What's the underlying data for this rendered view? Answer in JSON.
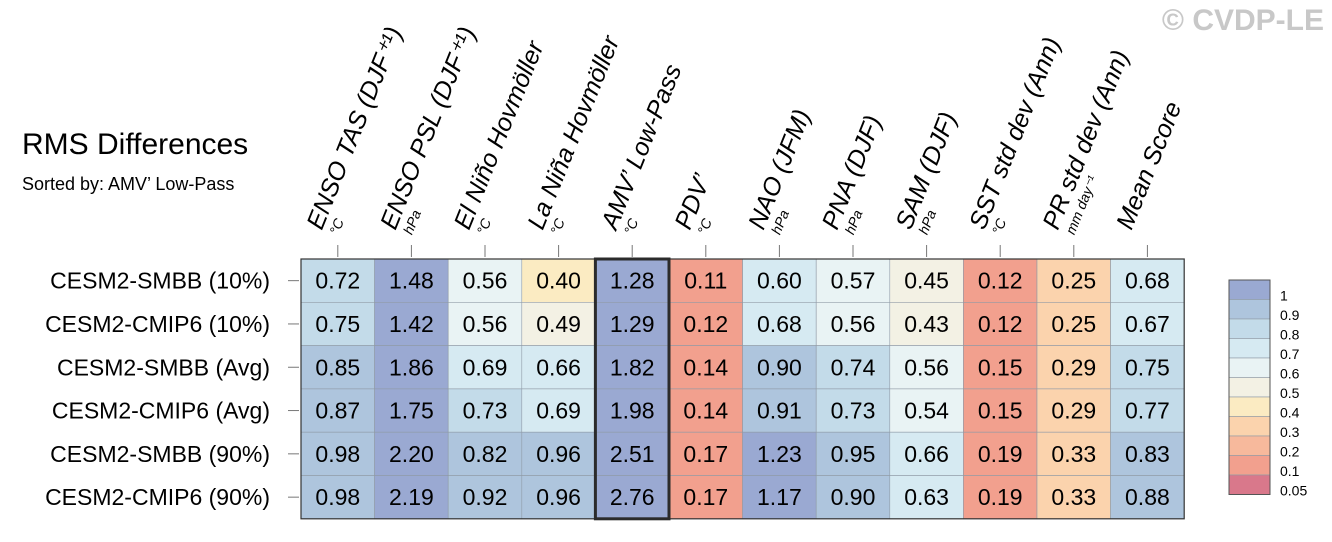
{
  "watermark": "© CVDP-LE",
  "chart_data": {
    "type": "heatmap",
    "title": "RMS Differences",
    "subtitle": "Sorted by: AMV’ Low-Pass",
    "sorted_column": "AMV’ Low-Pass",
    "columns": [
      {
        "name": "ENSO TAS (DJF⁺¹)",
        "unit": "°C"
      },
      {
        "name": "ENSO PSL (DJF⁺¹)",
        "unit": "hPa"
      },
      {
        "name": "El Niño Hovmöller",
        "unit": "°C"
      },
      {
        "name": "La Niña Hovmöller",
        "unit": "°C"
      },
      {
        "name": "AMV’ Low-Pass",
        "unit": "°C"
      },
      {
        "name": "PDV’",
        "unit": "°C"
      },
      {
        "name": "NAO (JFM)",
        "unit": "hPa"
      },
      {
        "name": "PNA (DJF)",
        "unit": "hPa"
      },
      {
        "name": "SAM (DJF)",
        "unit": "hPa"
      },
      {
        "name": "SST std dev (Ann)",
        "unit": "°C"
      },
      {
        "name": "PR std dev (Ann)",
        "unit": "mm day⁻¹"
      },
      {
        "name": "Mean Score",
        "unit": ""
      }
    ],
    "rows": [
      "CESM2-SMBB (10%)",
      "CESM2-CMIP6 (10%)",
      "CESM2-SMBB (Avg)",
      "CESM2-CMIP6 (Avg)",
      "CESM2-SMBB (90%)",
      "CESM2-CMIP6 (90%)"
    ],
    "values": [
      [
        0.72,
        1.48,
        0.56,
        0.4,
        1.28,
        0.11,
        0.6,
        0.57,
        0.45,
        0.12,
        0.25,
        0.68
      ],
      [
        0.75,
        1.42,
        0.56,
        0.49,
        1.29,
        0.12,
        0.68,
        0.56,
        0.43,
        0.12,
        0.25,
        0.67
      ],
      [
        0.85,
        1.86,
        0.69,
        0.66,
        1.82,
        0.14,
        0.9,
        0.74,
        0.56,
        0.15,
        0.29,
        0.75
      ],
      [
        0.87,
        1.75,
        0.73,
        0.69,
        1.98,
        0.14,
        0.91,
        0.73,
        0.54,
        0.15,
        0.29,
        0.77
      ],
      [
        0.98,
        2.2,
        0.82,
        0.96,
        2.51,
        0.17,
        1.23,
        0.95,
        0.66,
        0.19,
        0.33,
        0.83
      ],
      [
        0.98,
        2.19,
        0.92,
        0.96,
        2.76,
        0.17,
        1.17,
        0.9,
        0.63,
        0.19,
        0.33,
        0.88
      ]
    ],
    "colorbar": {
      "labels": [
        "1",
        "0.9",
        "0.8",
        "0.7",
        "0.6",
        "0.5",
        "0.4",
        "0.3",
        "0.2",
        "0.1",
        "0.05"
      ],
      "colors": [
        "#9aa9d2",
        "#aec5dd",
        "#c3dbe9",
        "#d6eaf2",
        "#e9f3f4",
        "#f3f1e4",
        "#fbebc2",
        "#fbd3ad",
        "#f7b99c",
        "#f2a08e",
        "#d9788b"
      ]
    }
  }
}
